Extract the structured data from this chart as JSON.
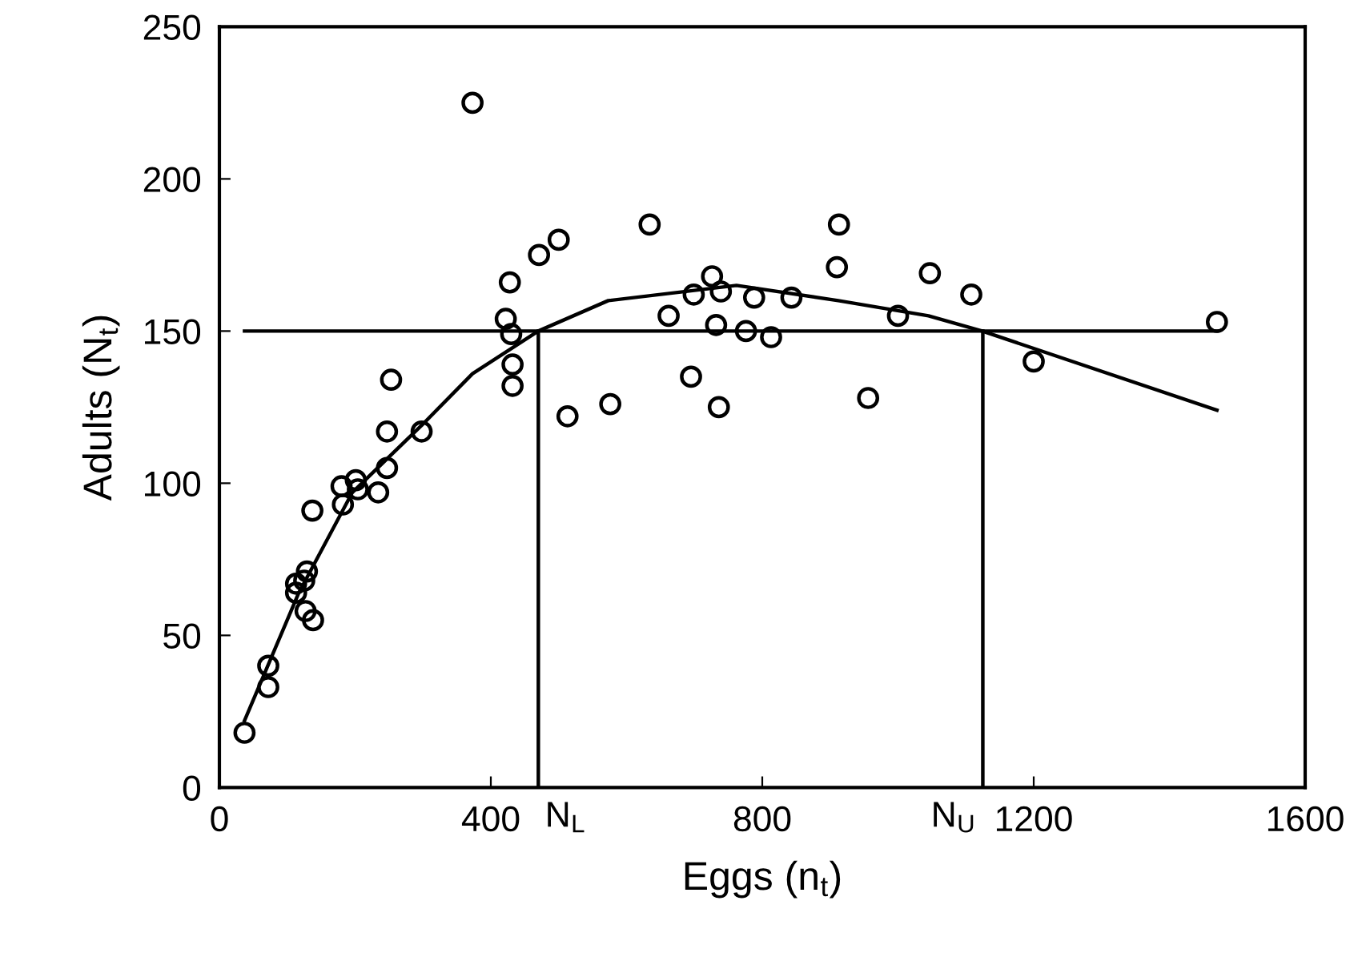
{
  "chart_data": {
    "type": "scatter",
    "xlabel": "Eggs (n$_{t}$)",
    "ylabel": "Adults (N$_{t}$)",
    "xlim": [
      0,
      1600
    ],
    "xticks": [
      0,
      400,
      800,
      1200,
      1600
    ],
    "ylim": [
      0,
      250
    ],
    "yticks": [
      0,
      50,
      100,
      150,
      200,
      250
    ],
    "grid": false,
    "series": [
      {
        "color": "#000000",
        "marker": "circle",
        "x": [
          37,
          72,
          72,
          113,
          129,
          125,
          113,
          127,
          138,
          137,
          180,
          182,
          201,
          204,
          234,
          247,
          247,
          253,
          298,
          373,
          422,
          428,
          430,
          432,
          432,
          471,
          500,
          513,
          576,
          634,
          662,
          695,
          699,
          726,
          739,
          732,
          736,
          776,
          788,
          813,
          843,
          913,
          910,
          956,
          1000,
          1047,
          1108,
          1200,
          1470
        ],
        "values": [
          18,
          40,
          33,
          67,
          71,
          68,
          64,
          58,
          55,
          91,
          99,
          93,
          101,
          98,
          97,
          105,
          117,
          134,
          117,
          225,
          154,
          166,
          149,
          139,
          132,
          175,
          180,
          122,
          126,
          185,
          155,
          135,
          162,
          168,
          163,
          152,
          125,
          150,
          161,
          148,
          161,
          185,
          171,
          128,
          155,
          169,
          162,
          140,
          153
        ]
      },
      {
        "type": "line",
        "color": "#000000",
        "marker": "none",
        "line_style": "solid",
        "x": [
          37,
          117,
          196,
          298,
          373,
          470,
          573,
          762,
          912,
          1045,
          1124,
          1470
        ],
        "values": [
          22,
          64,
          97,
          119,
          136,
          150,
          160,
          165,
          160,
          155,
          150,
          124
        ]
      },
      {
        "type": "line",
        "color": "#000000",
        "marker": "none",
        "line_style": "solid",
        "x": [
          37,
          1470
        ],
        "values": [
          150,
          150
        ]
      },
      {
        "type": "line",
        "color": "#000000",
        "marker": "none",
        "line_style": "solid",
        "x": [
          470,
          470
        ],
        "values": [
          0,
          150
        ]
      },
      {
        "type": "line",
        "color": "#000000",
        "marker": "none",
        "line_style": "solid",
        "x": [
          1125,
          1125
        ],
        "values": [
          0,
          150
        ]
      }
    ],
    "annotations": [
      {
        "text": "N$_{L}$",
        "x": 470,
        "y": 0
      },
      {
        "text": "N$_{U}$",
        "x": 1125,
        "y": 0
      }
    ]
  }
}
